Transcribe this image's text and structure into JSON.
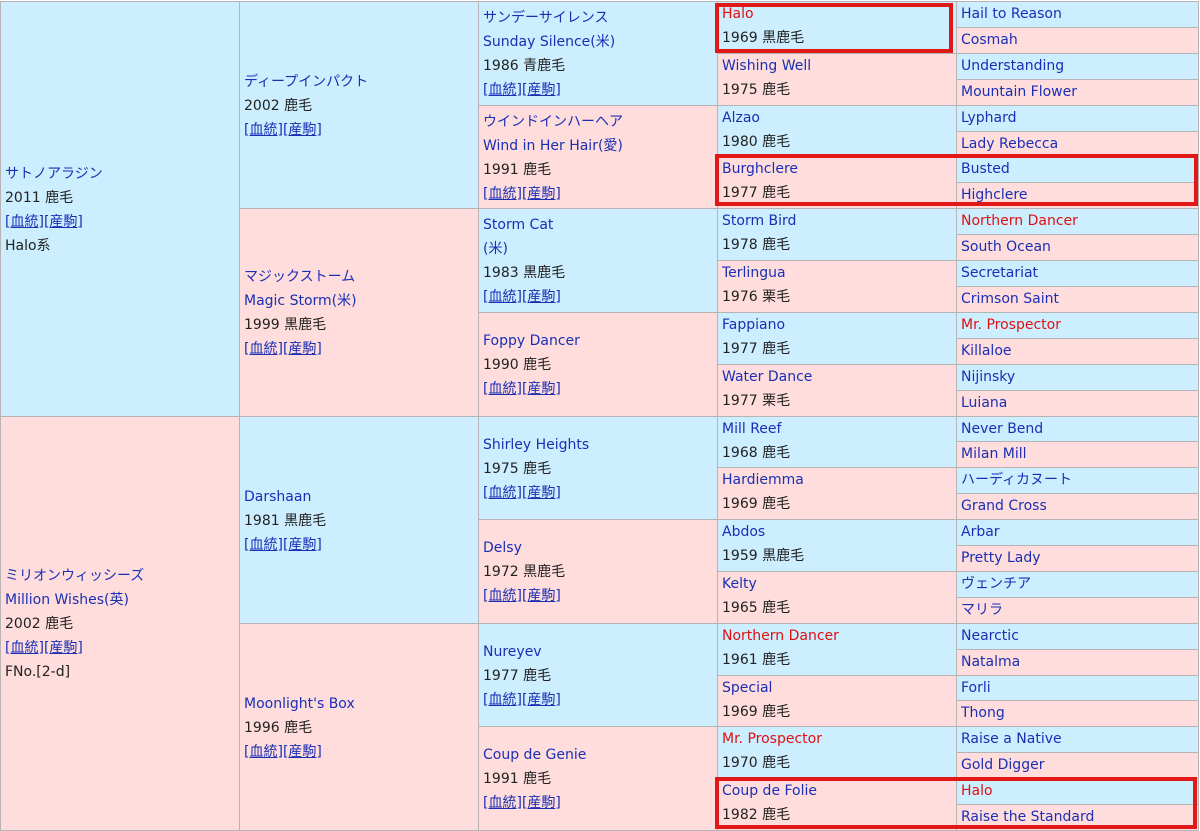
{
  "link_labels": [
    "血統",
    "産駒"
  ],
  "colors": {
    "male_bg": "#cceeff",
    "female_bg": "#ffdddd",
    "link": "#1a2fb4",
    "highlight": "#e01818"
  },
  "pedigree": [
    {
      "id": "g1-sire",
      "gen": 1,
      "sex": "male",
      "name_lines": [
        "サトノアラジン"
      ],
      "info_lines": [
        "2011 鹿毛"
      ],
      "links": true,
      "extra_lines": [
        "Halo系"
      ]
    },
    {
      "id": "g1-dam",
      "gen": 1,
      "sex": "female",
      "name_lines": [
        "ミリオンウィッシーズ",
        "Million Wishes(英)"
      ],
      "info_lines": [
        "2002 鹿毛"
      ],
      "links": true,
      "extra_lines": [
        "FNo.[2-d]"
      ]
    },
    {
      "id": "g2-1",
      "gen": 2,
      "sex": "male",
      "name_lines": [
        "ディープインパクト"
      ],
      "info_lines": [
        "2002 鹿毛"
      ],
      "links": true
    },
    {
      "id": "g2-2",
      "gen": 2,
      "sex": "female",
      "name_lines": [
        "マジックストーム",
        "Magic Storm(米)"
      ],
      "info_lines": [
        "1999 黒鹿毛"
      ],
      "links": true
    },
    {
      "id": "g2-3",
      "gen": 2,
      "sex": "male",
      "name_lines": [
        "Darshaan"
      ],
      "info_lines": [
        "1981 黒鹿毛"
      ],
      "links": true
    },
    {
      "id": "g2-4",
      "gen": 2,
      "sex": "female",
      "name_lines": [
        "Moonlight's Box"
      ],
      "info_lines": [
        "1996 鹿毛"
      ],
      "links": true
    },
    {
      "id": "g3-1",
      "gen": 3,
      "sex": "male",
      "name_lines": [
        "サンデーサイレンス",
        "Sunday Silence(米)"
      ],
      "info_lines": [
        "1986 青鹿毛"
      ],
      "links": true
    },
    {
      "id": "g3-2",
      "gen": 3,
      "sex": "female",
      "name_lines": [
        "ウインドインハーヘア",
        "Wind in Her Hair(愛)"
      ],
      "info_lines": [
        "1991 鹿毛"
      ],
      "links": true
    },
    {
      "id": "g3-3",
      "gen": 3,
      "sex": "male",
      "name_lines": [
        "Storm Cat",
        "(米)"
      ],
      "info_lines": [
        "1983 黒鹿毛"
      ],
      "links": true
    },
    {
      "id": "g3-4",
      "gen": 3,
      "sex": "female",
      "name_lines": [
        "Foppy Dancer"
      ],
      "info_lines": [
        "1990 鹿毛"
      ],
      "links": true
    },
    {
      "id": "g3-5",
      "gen": 3,
      "sex": "male",
      "name_lines": [
        "Shirley Heights"
      ],
      "info_lines": [
        "1975 鹿毛"
      ],
      "links": true
    },
    {
      "id": "g3-6",
      "gen": 3,
      "sex": "female",
      "name_lines": [
        "Delsy"
      ],
      "info_lines": [
        "1972 黒鹿毛"
      ],
      "links": true
    },
    {
      "id": "g3-7",
      "gen": 3,
      "sex": "male",
      "name_lines": [
        "Nureyev"
      ],
      "info_lines": [
        "1977 鹿毛"
      ],
      "links": true
    },
    {
      "id": "g3-8",
      "gen": 3,
      "sex": "female",
      "name_lines": [
        "Coup de Genie"
      ],
      "info_lines": [
        "1991 鹿毛"
      ],
      "links": true
    },
    {
      "id": "g4-1",
      "gen": 4,
      "sex": "male",
      "name_lines": [
        "Halo"
      ],
      "info_lines": [
        "1969 黒鹿毛"
      ],
      "red": true
    },
    {
      "id": "g4-2",
      "gen": 4,
      "sex": "female",
      "name_lines": [
        "Wishing Well"
      ],
      "info_lines": [
        "1975 鹿毛"
      ]
    },
    {
      "id": "g4-3",
      "gen": 4,
      "sex": "male",
      "name_lines": [
        "Alzao"
      ],
      "info_lines": [
        "1980 鹿毛"
      ]
    },
    {
      "id": "g4-4",
      "gen": 4,
      "sex": "female",
      "name_lines": [
        "Burghclere"
      ],
      "info_lines": [
        "1977 鹿毛"
      ]
    },
    {
      "id": "g4-5",
      "gen": 4,
      "sex": "male",
      "name_lines": [
        "Storm Bird"
      ],
      "info_lines": [
        "1978 鹿毛"
      ]
    },
    {
      "id": "g4-6",
      "gen": 4,
      "sex": "female",
      "name_lines": [
        "Terlingua"
      ],
      "info_lines": [
        "1976 栗毛"
      ]
    },
    {
      "id": "g4-7",
      "gen": 4,
      "sex": "male",
      "name_lines": [
        "Fappiano"
      ],
      "info_lines": [
        "1977 鹿毛"
      ]
    },
    {
      "id": "g4-8",
      "gen": 4,
      "sex": "female",
      "name_lines": [
        "Water Dance"
      ],
      "info_lines": [
        "1977 栗毛"
      ]
    },
    {
      "id": "g4-9",
      "gen": 4,
      "sex": "male",
      "name_lines": [
        "Mill Reef"
      ],
      "info_lines": [
        "1968 鹿毛"
      ]
    },
    {
      "id": "g4-10",
      "gen": 4,
      "sex": "female",
      "name_lines": [
        "Hardiemma"
      ],
      "info_lines": [
        "1969 鹿毛"
      ]
    },
    {
      "id": "g4-11",
      "gen": 4,
      "sex": "male",
      "name_lines": [
        "Abdos"
      ],
      "info_lines": [
        "1959 黒鹿毛"
      ]
    },
    {
      "id": "g4-12",
      "gen": 4,
      "sex": "female",
      "name_lines": [
        "Kelty"
      ],
      "info_lines": [
        "1965 鹿毛"
      ]
    },
    {
      "id": "g4-13",
      "gen": 4,
      "sex": "male",
      "name_lines": [
        "Northern Dancer"
      ],
      "info_lines": [
        "1961 鹿毛"
      ],
      "red": true
    },
    {
      "id": "g4-14",
      "gen": 4,
      "sex": "female",
      "name_lines": [
        "Special"
      ],
      "info_lines": [
        "1969 鹿毛"
      ]
    },
    {
      "id": "g4-15",
      "gen": 4,
      "sex": "male",
      "name_lines": [
        "Mr. Prospector"
      ],
      "info_lines": [
        "1970 鹿毛"
      ],
      "red": true
    },
    {
      "id": "g4-16",
      "gen": 4,
      "sex": "female",
      "name_lines": [
        "Coup de Folie"
      ],
      "info_lines": [
        "1982 鹿毛"
      ]
    },
    {
      "id": "g5-1",
      "gen": 5,
      "sex": "male",
      "name_lines": [
        "Hail to Reason"
      ]
    },
    {
      "id": "g5-2",
      "gen": 5,
      "sex": "female",
      "name_lines": [
        "Cosmah"
      ]
    },
    {
      "id": "g5-3",
      "gen": 5,
      "sex": "male",
      "name_lines": [
        "Understanding"
      ]
    },
    {
      "id": "g5-4",
      "gen": 5,
      "sex": "female",
      "name_lines": [
        "Mountain Flower"
      ]
    },
    {
      "id": "g5-5",
      "gen": 5,
      "sex": "male",
      "name_lines": [
        "Lyphard"
      ]
    },
    {
      "id": "g5-6",
      "gen": 5,
      "sex": "female",
      "name_lines": [
        "Lady Rebecca"
      ]
    },
    {
      "id": "g5-7",
      "gen": 5,
      "sex": "male",
      "name_lines": [
        "Busted"
      ]
    },
    {
      "id": "g5-8",
      "gen": 5,
      "sex": "female",
      "name_lines": [
        "Highclere"
      ]
    },
    {
      "id": "g5-9",
      "gen": 5,
      "sex": "male",
      "name_lines": [
        "Northern Dancer"
      ],
      "red": true
    },
    {
      "id": "g5-10",
      "gen": 5,
      "sex": "female",
      "name_lines": [
        "South Ocean"
      ]
    },
    {
      "id": "g5-11",
      "gen": 5,
      "sex": "male",
      "name_lines": [
        "Secretariat"
      ]
    },
    {
      "id": "g5-12",
      "gen": 5,
      "sex": "female",
      "name_lines": [
        "Crimson Saint"
      ]
    },
    {
      "id": "g5-13",
      "gen": 5,
      "sex": "male",
      "name_lines": [
        "Mr. Prospector"
      ],
      "red": true
    },
    {
      "id": "g5-14",
      "gen": 5,
      "sex": "female",
      "name_lines": [
        "Killaloe"
      ]
    },
    {
      "id": "g5-15",
      "gen": 5,
      "sex": "male",
      "name_lines": [
        "Nijinsky"
      ]
    },
    {
      "id": "g5-16",
      "gen": 5,
      "sex": "female",
      "name_lines": [
        "Luiana"
      ]
    },
    {
      "id": "g5-17",
      "gen": 5,
      "sex": "male",
      "name_lines": [
        "Never Bend"
      ]
    },
    {
      "id": "g5-18",
      "gen": 5,
      "sex": "female",
      "name_lines": [
        "Milan Mill"
      ]
    },
    {
      "id": "g5-19",
      "gen": 5,
      "sex": "male",
      "name_lines": [
        "ハーディカヌート"
      ]
    },
    {
      "id": "g5-20",
      "gen": 5,
      "sex": "female",
      "name_lines": [
        "Grand Cross"
      ]
    },
    {
      "id": "g5-21",
      "gen": 5,
      "sex": "male",
      "name_lines": [
        "Arbar"
      ]
    },
    {
      "id": "g5-22",
      "gen": 5,
      "sex": "female",
      "name_lines": [
        "Pretty Lady"
      ]
    },
    {
      "id": "g5-23",
      "gen": 5,
      "sex": "male",
      "name_lines": [
        "ヴェンチア"
      ]
    },
    {
      "id": "g5-24",
      "gen": 5,
      "sex": "female",
      "name_lines": [
        "マリラ"
      ]
    },
    {
      "id": "g5-25",
      "gen": 5,
      "sex": "male",
      "name_lines": [
        "Nearctic"
      ]
    },
    {
      "id": "g5-26",
      "gen": 5,
      "sex": "female",
      "name_lines": [
        "Natalma"
      ]
    },
    {
      "id": "g5-27",
      "gen": 5,
      "sex": "male",
      "name_lines": [
        "Forli"
      ]
    },
    {
      "id": "g5-28",
      "gen": 5,
      "sex": "female",
      "name_lines": [
        "Thong"
      ]
    },
    {
      "id": "g5-29",
      "gen": 5,
      "sex": "male",
      "name_lines": [
        "Raise a Native"
      ]
    },
    {
      "id": "g5-30",
      "gen": 5,
      "sex": "female",
      "name_lines": [
        "Gold Digger"
      ]
    },
    {
      "id": "g5-31",
      "gen": 5,
      "sex": "male",
      "name_lines": [
        "Halo"
      ],
      "red": true
    },
    {
      "id": "g5-32",
      "gen": 5,
      "sex": "female",
      "name_lines": [
        "Raise the Standard"
      ]
    }
  ]
}
